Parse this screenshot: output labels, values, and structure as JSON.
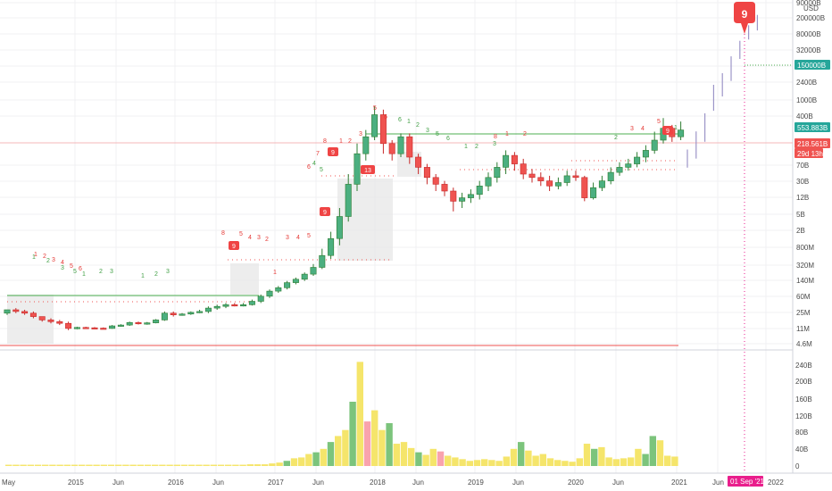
{
  "chart_data": {
    "type": "candlestick",
    "interval": "monthly",
    "price_axis": {
      "scale": "log",
      "unit_label": "USD",
      "ticks": [
        "90000B",
        "200000B",
        "80000B",
        "32000B",
        "6000B",
        "2400B",
        "1000B",
        "400B",
        "70B",
        "30B",
        "12B",
        "5B",
        "2B",
        "800M",
        "320M",
        "140M",
        "60M",
        "25M",
        "11M",
        "4.6M"
      ]
    },
    "volume_axis": {
      "ticks": [
        "240B",
        "200B",
        "160B",
        "120B",
        "80B",
        "40B",
        "0"
      ]
    },
    "time_axis": {
      "labels": [
        "May",
        "2015",
        "Jun",
        "2016",
        "Jun",
        "2017",
        "Jun",
        "2018",
        "Jun",
        "2019",
        "Jun",
        "2020",
        "Jun",
        "2021",
        "Jun",
        "01 Sep '21",
        "2022"
      ]
    },
    "price_badges": [
      {
        "label": "150000B",
        "color": "#26a69a"
      },
      {
        "label": "553.883B",
        "color": "#26a69a"
      },
      {
        "label": "218.561B",
        "color": "#ef5350"
      },
      {
        "label": "29d 13h",
        "color": "#ef5350"
      }
    ],
    "projection_marker": {
      "label": "9",
      "date": "01 Sep '21"
    },
    "setup_badges": [
      "9",
      "9",
      "9",
      "9",
      "13"
    ],
    "sequence_counts": {
      "green": [
        "1",
        "2",
        "3",
        "5",
        "1",
        "2",
        "3",
        "1",
        "2",
        "3",
        "4",
        "5",
        "6",
        "1",
        "2",
        "3",
        "5",
        "6",
        "1",
        "2",
        "3",
        "2",
        "1"
      ],
      "red": [
        "1",
        "2",
        "3",
        "4",
        "5",
        "6",
        "8",
        "5",
        "4",
        "3",
        "2",
        "1",
        "3",
        "4",
        "5",
        "6",
        "7",
        "8",
        "1",
        "2",
        "3",
        "5",
        "6",
        "8",
        "1",
        "2",
        "3",
        "4",
        "5"
      ]
    },
    "candles": [
      {
        "o": 18,
        "c": 20,
        "h": 20,
        "l": 17
      },
      {
        "o": 20,
        "c": 19,
        "h": 21,
        "l": 18
      },
      {
        "o": 19,
        "c": 18,
        "h": 20,
        "l": 17
      },
      {
        "o": 18,
        "c": 16,
        "h": 19,
        "l": 15
      },
      {
        "o": 16,
        "c": 14,
        "h": 16,
        "l": 13
      },
      {
        "o": 14,
        "c": 13,
        "h": 15,
        "l": 12
      },
      {
        "o": 13,
        "c": 12,
        "h": 14,
        "l": 11
      },
      {
        "o": 12,
        "c": 9,
        "h": 13,
        "l": 8
      },
      {
        "o": 9,
        "c": 9.6,
        "h": 10,
        "l": 8.5
      },
      {
        "o": 9.6,
        "c": 9.4,
        "h": 10,
        "l": 9
      },
      {
        "o": 9.4,
        "c": 9.2,
        "h": 9.8,
        "l": 8.8
      },
      {
        "o": 9.2,
        "c": 9,
        "h": 9.6,
        "l": 8.6
      },
      {
        "o": 9,
        "c": 10.5,
        "h": 11,
        "l": 8.8
      },
      {
        "o": 10.5,
        "c": 11,
        "h": 11.5,
        "l": 10
      },
      {
        "o": 11,
        "c": 12.5,
        "h": 13,
        "l": 10.5
      },
      {
        "o": 12.5,
        "c": 11.8,
        "h": 13,
        "l": 11.3
      },
      {
        "o": 11.8,
        "c": 12.3,
        "h": 12.8,
        "l": 11.2
      },
      {
        "o": 12.3,
        "c": 14,
        "h": 14.5,
        "l": 12
      },
      {
        "o": 14,
        "c": 18,
        "h": 19,
        "l": 13.5
      },
      {
        "o": 18,
        "c": 17,
        "h": 19,
        "l": 16
      },
      {
        "o": 17,
        "c": 17.5,
        "h": 18,
        "l": 16.5
      },
      {
        "o": 17.5,
        "c": 18.5,
        "h": 19,
        "l": 17
      },
      {
        "o": 18.5,
        "c": 19,
        "h": 20,
        "l": 18
      },
      {
        "o": 19,
        "c": 21,
        "h": 22,
        "l": 18
      },
      {
        "o": 21,
        "c": 22,
        "h": 23,
        "l": 20
      },
      {
        "o": 22,
        "c": 23,
        "h": 24,
        "l": 21
      },
      {
        "o": 23,
        "c": 22.5,
        "h": 24,
        "l": 22
      },
      {
        "o": 22.5,
        "c": 23,
        "h": 24,
        "l": 22
      },
      {
        "o": 23,
        "c": 25,
        "h": 26,
        "l": 22.5
      },
      {
        "o": 25,
        "c": 28,
        "h": 29,
        "l": 24
      },
      {
        "o": 28,
        "c": 31,
        "h": 32,
        "l": 27
      },
      {
        "o": 31,
        "c": 33,
        "h": 34,
        "l": 30
      },
      {
        "o": 33,
        "c": 36,
        "h": 37,
        "l": 32
      },
      {
        "o": 36,
        "c": 38,
        "h": 39,
        "l": 35
      },
      {
        "o": 38,
        "c": 41,
        "h": 42,
        "l": 37
      },
      {
        "o": 41,
        "c": 45,
        "h": 47,
        "l": 40
      },
      {
        "o": 45,
        "c": 52,
        "h": 56,
        "l": 44
      },
      {
        "o": 52,
        "c": 62,
        "h": 66,
        "l": 50
      },
      {
        "o": 62,
        "c": 75,
        "h": 80,
        "l": 58
      },
      {
        "o": 75,
        "c": 94,
        "h": 100,
        "l": 72
      },
      {
        "o": 94,
        "c": 112,
        "h": 118,
        "l": 90
      },
      {
        "o": 112,
        "c": 122,
        "h": 126,
        "l": 108
      },
      {
        "o": 122,
        "c": 135,
        "h": 140,
        "l": 120
      },
      {
        "o": 135,
        "c": 118,
        "h": 138,
        "l": 112
      },
      {
        "o": 118,
        "c": 112,
        "h": 120,
        "l": 108
      },
      {
        "o": 112,
        "c": 122,
        "h": 124,
        "l": 110
      },
      {
        "o": 122,
        "c": 110,
        "h": 124,
        "l": 106
      },
      {
        "o": 110,
        "c": 104,
        "h": 112,
        "l": 100
      },
      {
        "o": 104,
        "c": 98,
        "h": 106,
        "l": 94
      },
      {
        "o": 98,
        "c": 94,
        "h": 100,
        "l": 90
      },
      {
        "o": 94,
        "c": 90,
        "h": 96,
        "l": 87
      },
      {
        "o": 90,
        "c": 84,
        "h": 92,
        "l": 78
      },
      {
        "o": 84,
        "c": 86,
        "h": 89,
        "l": 80
      },
      {
        "o": 86,
        "c": 88,
        "h": 91,
        "l": 83
      },
      {
        "o": 88,
        "c": 93,
        "h": 96,
        "l": 85
      },
      {
        "o": 93,
        "c": 98,
        "h": 101,
        "l": 90
      },
      {
        "o": 98,
        "c": 104,
        "h": 107,
        "l": 95
      },
      {
        "o": 104,
        "c": 111,
        "h": 114,
        "l": 100
      },
      {
        "o": 111,
        "c": 106,
        "h": 113,
        "l": 102
      },
      {
        "o": 106,
        "c": 100,
        "h": 109,
        "l": 97
      },
      {
        "o": 100,
        "c": 98,
        "h": 103,
        "l": 95
      },
      {
        "o": 98,
        "c": 96,
        "h": 101,
        "l": 93
      },
      {
        "o": 96,
        "c": 93,
        "h": 99,
        "l": 90
      },
      {
        "o": 93,
        "c": 95,
        "h": 98,
        "l": 91
      },
      {
        "o": 95,
        "c": 99,
        "h": 102,
        "l": 93
      },
      {
        "o": 99,
        "c": 98,
        "h": 102,
        "l": 96
      },
      {
        "o": 98,
        "c": 86,
        "h": 99,
        "l": 84
      },
      {
        "o": 86,
        "c": 92,
        "h": 95,
        "l": 85
      },
      {
        "o": 92,
        "c": 96,
        "h": 99,
        "l": 90
      },
      {
        "o": 96,
        "c": 101,
        "h": 104,
        "l": 94
      },
      {
        "o": 101,
        "c": 104,
        "h": 107,
        "l": 99
      },
      {
        "o": 104,
        "c": 106,
        "h": 109,
        "l": 102
      },
      {
        "o": 106,
        "c": 110,
        "h": 113,
        "l": 104
      },
      {
        "o": 110,
        "c": 114,
        "h": 117,
        "l": 107
      },
      {
        "o": 114,
        "c": 120,
        "h": 125,
        "l": 112
      },
      {
        "o": 120,
        "c": 127,
        "h": 133,
        "l": 118
      },
      {
        "o": 127,
        "c": 122,
        "h": 129,
        "l": 119
      },
      {
        "o": 122,
        "c": 126,
        "h": 131,
        "l": 120
      }
    ],
    "projection_bars": [
      {
        "h": 150,
        "l": 136
      },
      {
        "h": 164,
        "l": 143
      },
      {
        "h": 178,
        "l": 156
      },
      {
        "h": 200,
        "l": 180
      },
      {
        "h": 209,
        "l": 191
      },
      {
        "h": 222,
        "l": 203
      },
      {
        "h": 234,
        "l": 220
      },
      {
        "h": 246,
        "l": 235
      },
      {
        "h": 254,
        "l": 242
      }
    ],
    "volumes": [
      {
        "v": 3,
        "c": "y"
      },
      {
        "v": 3,
        "c": "y"
      },
      {
        "v": 3,
        "c": "y"
      },
      {
        "v": 3,
        "c": "y"
      },
      {
        "v": 3,
        "c": "y"
      },
      {
        "v": 3,
        "c": "y"
      },
      {
        "v": 3,
        "c": "y"
      },
      {
        "v": 3,
        "c": "y"
      },
      {
        "v": 3,
        "c": "y"
      },
      {
        "v": 3,
        "c": "y"
      },
      {
        "v": 3,
        "c": "y"
      },
      {
        "v": 3,
        "c": "y"
      },
      {
        "v": 3,
        "c": "y"
      },
      {
        "v": 3,
        "c": "y"
      },
      {
        "v": 3,
        "c": "y"
      },
      {
        "v": 3,
        "c": "y"
      },
      {
        "v": 3,
        "c": "y"
      },
      {
        "v": 3,
        "c": "y"
      },
      {
        "v": 3,
        "c": "y"
      },
      {
        "v": 3,
        "c": "y"
      },
      {
        "v": 3,
        "c": "y"
      },
      {
        "v": 3,
        "c": "y"
      },
      {
        "v": 3,
        "c": "y"
      },
      {
        "v": 3,
        "c": "y"
      },
      {
        "v": 3,
        "c": "y"
      },
      {
        "v": 3,
        "c": "y"
      },
      {
        "v": 3,
        "c": "y"
      },
      {
        "v": 3,
        "c": "y"
      },
      {
        "v": 3,
        "c": "y"
      },
      {
        "v": 3,
        "c": "y"
      },
      {
        "v": 3,
        "c": "y"
      },
      {
        "v": 3,
        "c": "y"
      },
      {
        "v": 3,
        "c": "y"
      },
      {
        "v": 4,
        "c": "y"
      },
      {
        "v": 4,
        "c": "y"
      },
      {
        "v": 4,
        "c": "y"
      },
      {
        "v": 6,
        "c": "y"
      },
      {
        "v": 8,
        "c": "y"
      },
      {
        "v": 12,
        "c": "g"
      },
      {
        "v": 18,
        "c": "y"
      },
      {
        "v": 20,
        "c": "y"
      },
      {
        "v": 28,
        "c": "y"
      },
      {
        "v": 32,
        "c": "g"
      },
      {
        "v": 40,
        "c": "y"
      },
      {
        "v": 56,
        "c": "g"
      },
      {
        "v": 70,
        "c": "y"
      },
      {
        "v": 84,
        "c": "y"
      },
      {
        "v": 150,
        "c": "g"
      },
      {
        "v": 243,
        "c": "y"
      },
      {
        "v": 104,
        "c": "p"
      },
      {
        "v": 130,
        "c": "y"
      },
      {
        "v": 84,
        "c": "y"
      },
      {
        "v": 100,
        "c": "g"
      },
      {
        "v": 52,
        "c": "y"
      },
      {
        "v": 56,
        "c": "y"
      },
      {
        "v": 42,
        "c": "y"
      },
      {
        "v": 32,
        "c": "g"
      },
      {
        "v": 26,
        "c": "y"
      },
      {
        "v": 40,
        "c": "y"
      },
      {
        "v": 34,
        "c": "p"
      },
      {
        "v": 24,
        "c": "y"
      },
      {
        "v": 20,
        "c": "y"
      },
      {
        "v": 16,
        "c": "y"
      },
      {
        "v": 12,
        "c": "y"
      },
      {
        "v": 14,
        "c": "y"
      },
      {
        "v": 16,
        "c": "y"
      },
      {
        "v": 14,
        "c": "y"
      },
      {
        "v": 12,
        "c": "y"
      },
      {
        "v": 22,
        "c": "y"
      },
      {
        "v": 40,
        "c": "y"
      },
      {
        "v": 56,
        "c": "g"
      },
      {
        "v": 36,
        "c": "y"
      },
      {
        "v": 24,
        "c": "y"
      },
      {
        "v": 28,
        "c": "y"
      },
      {
        "v": 18,
        "c": "y"
      },
      {
        "v": 14,
        "c": "y"
      },
      {
        "v": 12,
        "c": "y"
      },
      {
        "v": 10,
        "c": "y"
      },
      {
        "v": 18,
        "c": "y"
      },
      {
        "v": 52,
        "c": "y"
      },
      {
        "v": 40,
        "c": "g"
      },
      {
        "v": 44,
        "c": "y"
      },
      {
        "v": 20,
        "c": "y"
      },
      {
        "v": 16,
        "c": "y"
      },
      {
        "v": 18,
        "c": "y"
      },
      {
        "v": 20,
        "c": "y"
      },
      {
        "v": 40,
        "c": "y"
      },
      {
        "v": 28,
        "c": "g"
      },
      {
        "v": 70,
        "c": "g"
      },
      {
        "v": 60,
        "c": "y"
      },
      {
        "v": 24,
        "c": "y"
      },
      {
        "v": 22,
        "c": "y"
      }
    ],
    "colors": {
      "up": "#26a69a",
      "up_body": "#4caf80",
      "down": "#ef5350",
      "vol_yellow": "#f5e56b",
      "vol_green": "#7cc47c",
      "vol_pink": "#f9a3ad",
      "support": "#4caf50",
      "resistance": "#ef5350",
      "shade": "#e6e6e6",
      "marker": "#ef4444",
      "today": "#e91e8c"
    },
    "grid": true,
    "legend": "none"
  }
}
